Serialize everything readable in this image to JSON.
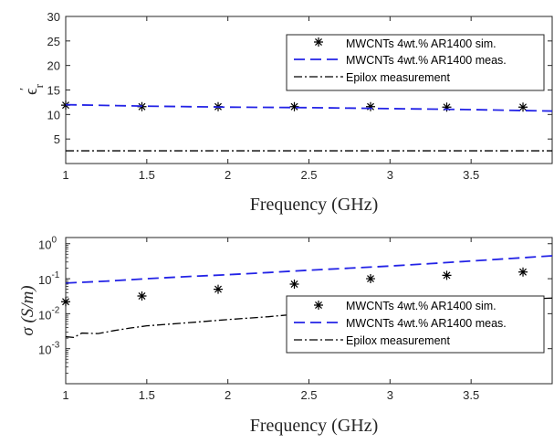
{
  "colors": {
    "sim": "#000000",
    "meas": "#2323e6",
    "epilox": "#000000",
    "axis": "#262626"
  },
  "chart_data": [
    {
      "type": "line",
      "xlabel": "Frequency (GHz)",
      "ylabel_main": "ϵ",
      "ylabel_prime": "′",
      "ylabel_sub": "r",
      "xlim": [
        1,
        4
      ],
      "ylim": [
        0,
        30
      ],
      "yscale": "linear",
      "xticks": [
        1,
        1.5,
        2,
        2.5,
        3,
        3.5
      ],
      "xtick_labels": [
        "1",
        "1.5",
        "2",
        "2.5",
        "3",
        "3.5"
      ],
      "yticks": [
        5,
        10,
        15,
        20,
        25,
        30
      ],
      "ytick_labels": [
        "5",
        "10",
        "15",
        "20",
        "25",
        "30"
      ],
      "legend_position": "top-right",
      "series": [
        {
          "name": "MWCNTs 4wt.% AR1400 sim.",
          "style": "markers-star",
          "x": [
            1.0,
            1.47,
            1.94,
            2.41,
            2.88,
            3.35,
            3.82
          ],
          "y": [
            11.9,
            11.6,
            11.6,
            11.6,
            11.6,
            11.5,
            11.5
          ]
        },
        {
          "name": "MWCNTs 4wt.% AR1400 meas.",
          "style": "dashed",
          "x": [
            1.0,
            1.5,
            2.0,
            2.5,
            3.0,
            3.5,
            4.0
          ],
          "y": [
            12.0,
            11.7,
            11.5,
            11.4,
            11.2,
            11.0,
            10.7
          ]
        },
        {
          "name": "Epilox measurement",
          "style": "dashdot",
          "x": [
            1.0,
            1.5,
            2.0,
            2.5,
            3.0,
            3.5,
            4.0
          ],
          "y": [
            2.6,
            2.6,
            2.6,
            2.6,
            2.6,
            2.6,
            2.6
          ]
        }
      ]
    },
    {
      "type": "line",
      "xlabel": "Frequency (GHz)",
      "ylabel": "σ (S/m)",
      "xlim": [
        1,
        4
      ],
      "ylim": [
        0.0001,
        1.5
      ],
      "yscale": "log",
      "xticks": [
        1,
        1.5,
        2,
        2.5,
        3,
        3.5
      ],
      "xtick_labels": [
        "1",
        "1.5",
        "2",
        "2.5",
        "3",
        "3.5"
      ],
      "yticks": [
        0.001,
        0.01,
        0.1,
        1
      ],
      "ytick_labels": [
        {
          "base": "10",
          "exp": "-3"
        },
        {
          "base": "10",
          "exp": "-2"
        },
        {
          "base": "10",
          "exp": "-1"
        },
        {
          "base": "10",
          "exp": "0"
        }
      ],
      "legend_position": "bottom-right",
      "series": [
        {
          "name": "MWCNTs 4wt.% AR1400 sim.",
          "style": "markers-star",
          "x": [
            1.0,
            1.47,
            1.94,
            2.41,
            2.88,
            3.35,
            3.82
          ],
          "y": [
            0.022,
            0.032,
            0.05,
            0.07,
            0.1,
            0.125,
            0.155
          ]
        },
        {
          "name": "MWCNTs 4wt.% AR1400 meas.",
          "style": "dashed",
          "x": [
            1.0,
            1.25,
            1.5,
            1.75,
            2.0,
            2.25,
            2.5,
            2.75,
            3.0,
            3.25,
            3.5,
            3.75,
            4.0
          ],
          "y": [
            0.075,
            0.085,
            0.1,
            0.115,
            0.13,
            0.15,
            0.175,
            0.2,
            0.23,
            0.27,
            0.32,
            0.38,
            0.45
          ]
        },
        {
          "name": "Epilox measurement",
          "style": "dashdot",
          "x": [
            1.0,
            1.05,
            1.1,
            1.2,
            1.3,
            1.4,
            1.5,
            1.75,
            2.0,
            2.25,
            2.5,
            2.75,
            3.0,
            3.25,
            3.5,
            3.75,
            4.0
          ],
          "y": [
            0.0022,
            0.0021,
            0.0028,
            0.0027,
            0.0033,
            0.0039,
            0.0045,
            0.0055,
            0.0068,
            0.0082,
            0.0105,
            0.012,
            0.014,
            0.017,
            0.021,
            0.025,
            0.028
          ]
        }
      ]
    }
  ]
}
